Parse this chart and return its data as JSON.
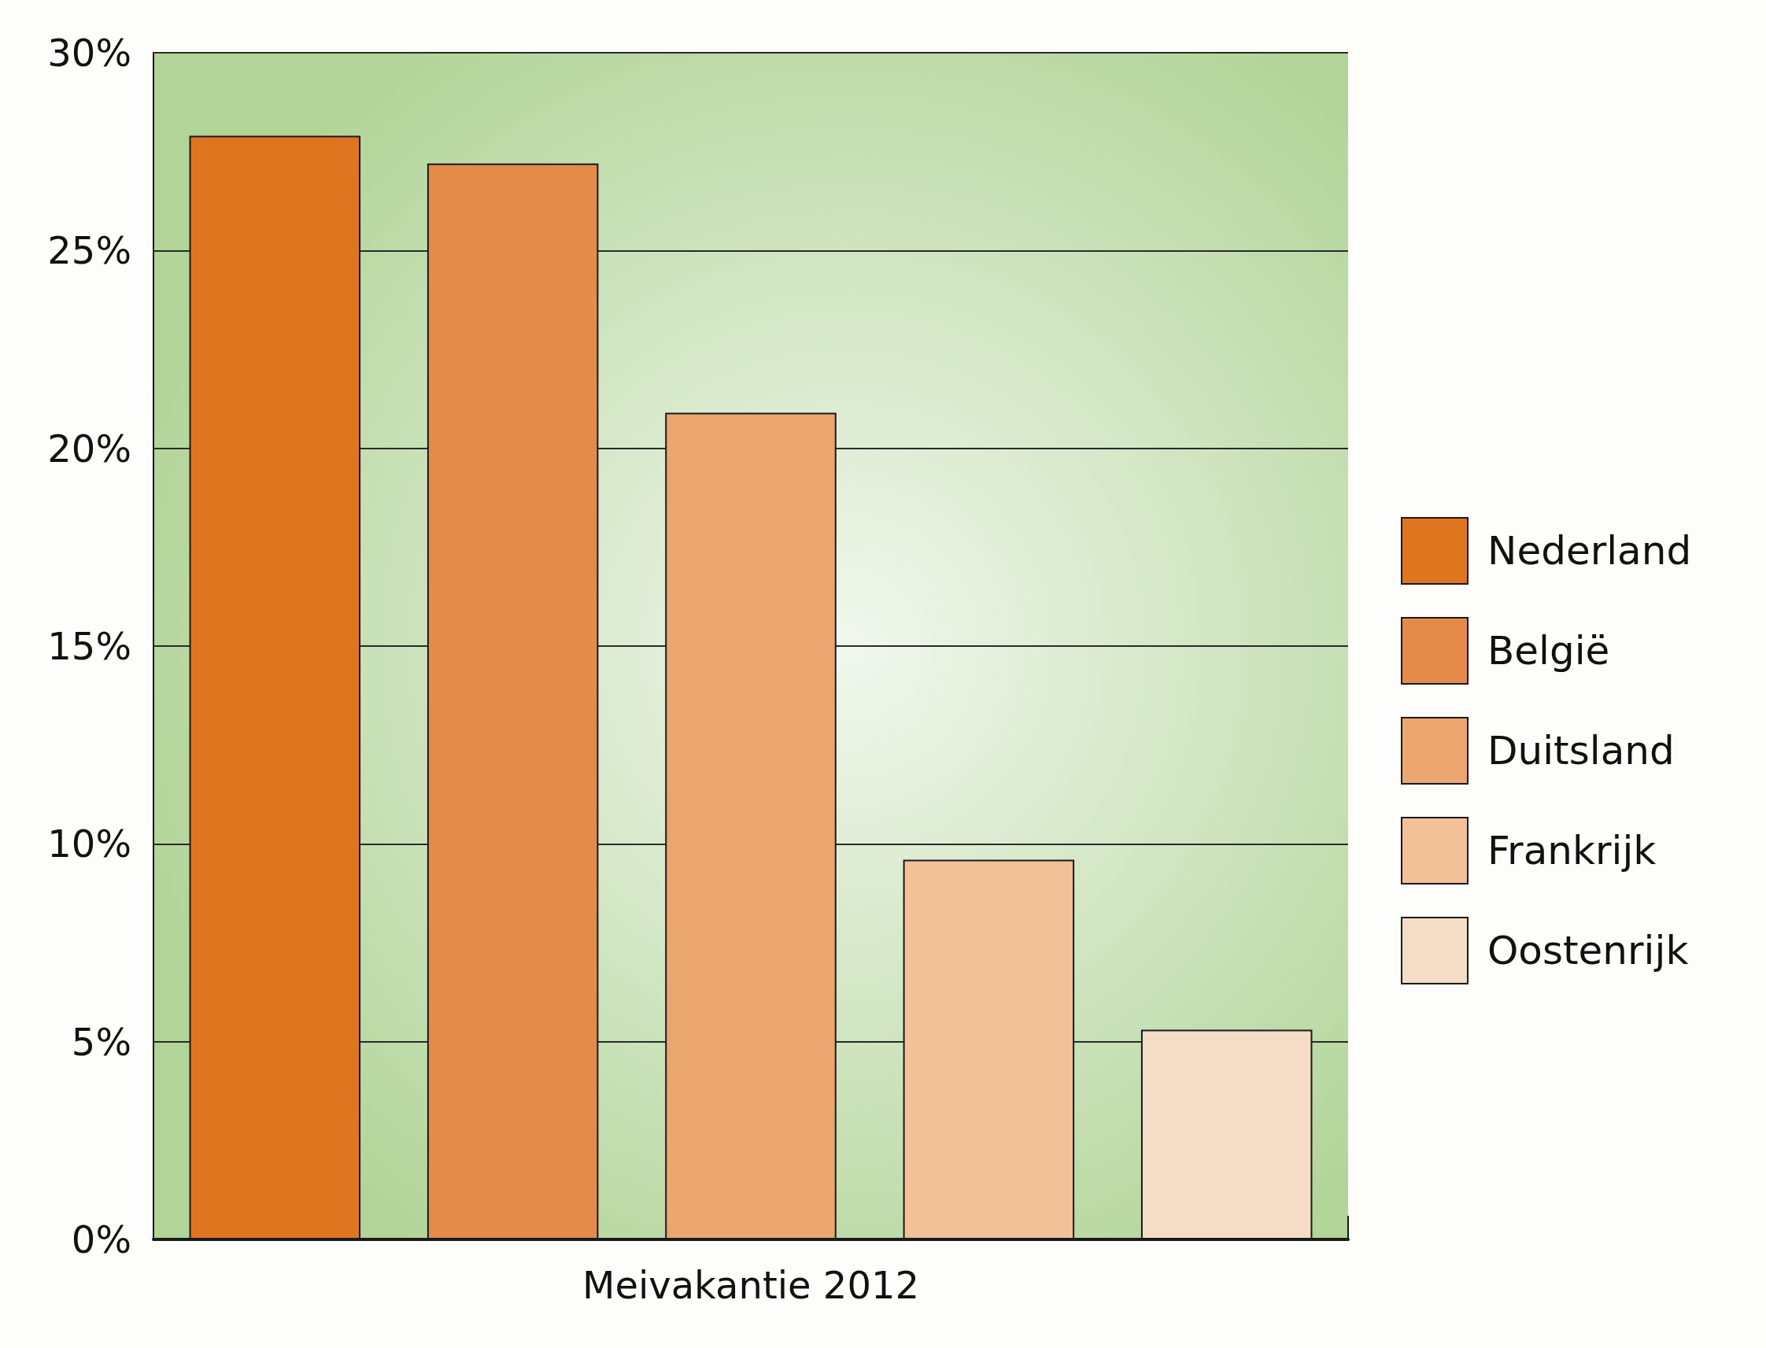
{
  "chart_data": {
    "type": "bar",
    "categories": [
      "Meivakantie 2012"
    ],
    "series": [
      {
        "name": "Nederland",
        "color": "#e07520",
        "values": [
          27.9
        ]
      },
      {
        "name": "België",
        "color": "#e58b4a",
        "values": [
          27.2
        ]
      },
      {
        "name": "Duitsland",
        "color": "#eba670",
        "values": [
          20.9
        ]
      },
      {
        "name": "Frankrijk",
        "color": "#f2c198",
        "values": [
          9.6
        ]
      },
      {
        "name": "Oostenrijk",
        "color": "#f5dcc6",
        "values": [
          5.3
        ]
      }
    ],
    "ylim": [
      0,
      30
    ],
    "yticks": [
      {
        "value": 0,
        "label": "0%"
      },
      {
        "value": 5,
        "label": "5%"
      },
      {
        "value": 10,
        "label": "10%"
      },
      {
        "value": 15,
        "label": "15%"
      },
      {
        "value": 20,
        "label": "20%"
      },
      {
        "value": 25,
        "label": "25%"
      },
      {
        "value": 30,
        "label": "30%"
      }
    ],
    "grid": "y",
    "legend": "right"
  }
}
